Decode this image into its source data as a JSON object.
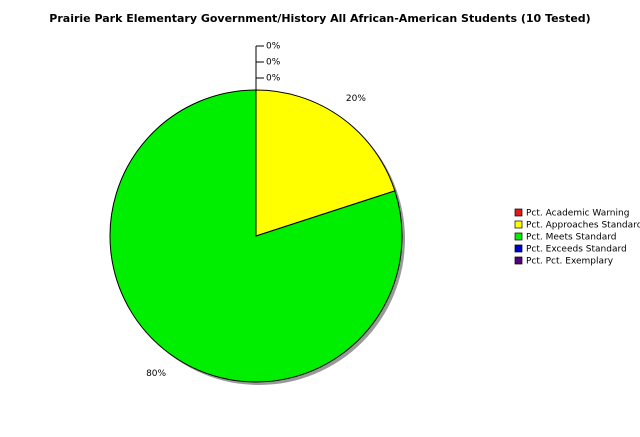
{
  "chart_data": {
    "type": "pie",
    "title": "Prairie Park Elementary Government/History All African-American Students (10 Tested)",
    "categories": [
      "Pct. Academic Warning",
      "Pct. Approaches Standard",
      "Pct. Meets Standard",
      "Pct. Exceeds Standard",
      "Pct. Pct. Exemplary"
    ],
    "values": [
      0,
      20,
      80,
      0,
      0
    ],
    "value_labels": [
      "0%",
      "20%",
      "80%",
      "0%",
      "0%"
    ],
    "colors": [
      "#e31a1c",
      "#ffff00",
      "#00ee00",
      "#0000cc",
      "#55007f"
    ],
    "legend": "right"
  }
}
